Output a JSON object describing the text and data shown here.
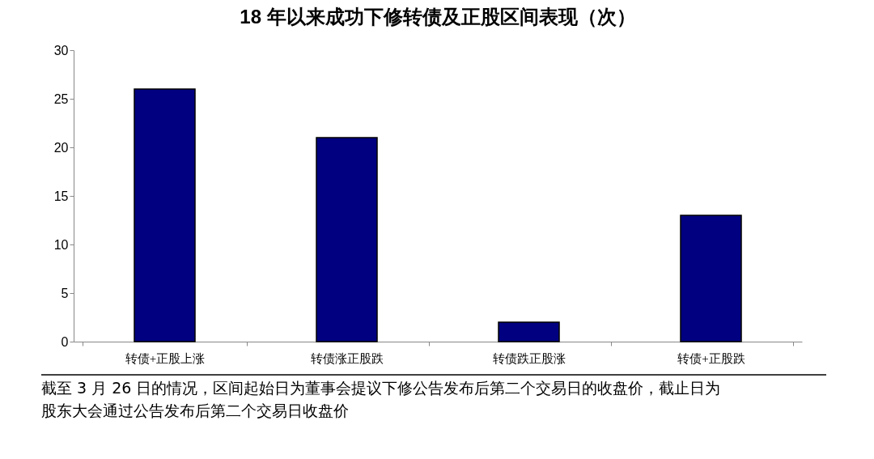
{
  "chart_data": {
    "type": "bar",
    "title": "18 年以来成功下修转债及正股区间表现（次）",
    "categories": [
      "转债+正股上涨",
      "转债涨正股跌",
      "转债跌正股涨",
      "转债+正股跌"
    ],
    "values": [
      26,
      21,
      2,
      13
    ],
    "color": "#000080",
    "ylim": [
      0,
      30
    ],
    "yticks": [
      0,
      5,
      10,
      15,
      20,
      25,
      30
    ],
    "grid": false,
    "annotations": [
      "截至 3 月 26 日的情况，区间起始日为董事会提议下修公告发布后第二个交易日的收盘价，截止日为股东大会通过公告发布后第二个交易日收盘价"
    ]
  }
}
